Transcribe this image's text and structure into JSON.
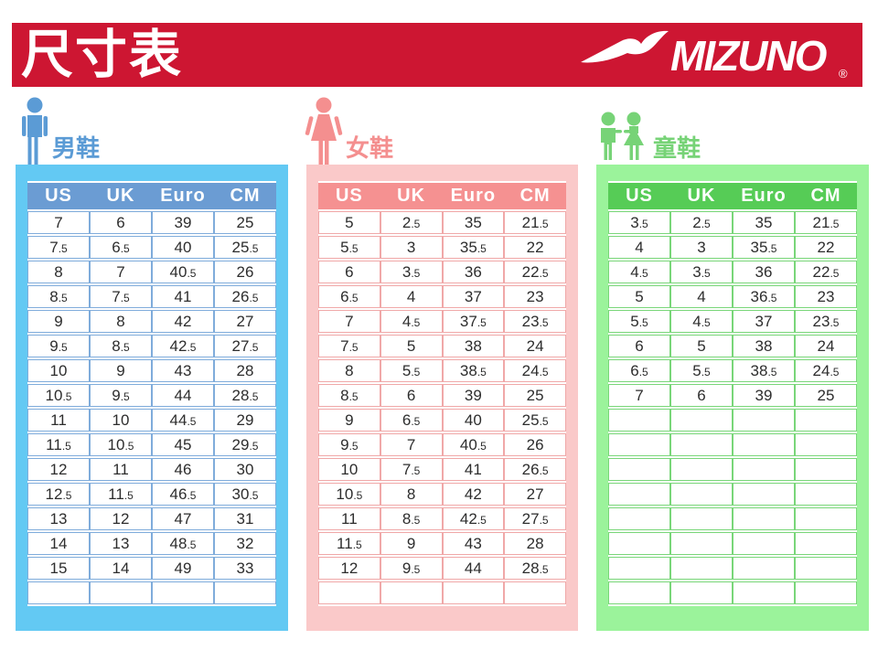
{
  "banner": {
    "title": "尺寸表",
    "brand": "MIZUNO",
    "registered_mark": "®",
    "background": "#CD1632"
  },
  "sections": [
    {
      "id": "men",
      "label": "男鞋",
      "icon": "man-icon",
      "colors": {
        "panel": "#63C9F3",
        "header": "#6B9CD3",
        "border": "#7FACDB",
        "accent": "#5B9BD5"
      },
      "columns": [
        "US",
        "UK",
        "Euro",
        "CM"
      ],
      "rows": [
        [
          "7",
          "6",
          "39",
          "25"
        ],
        [
          "7.5",
          "6.5",
          "40",
          "25.5"
        ],
        [
          "8",
          "7",
          "40.5",
          "26"
        ],
        [
          "8.5",
          "7.5",
          "41",
          "26.5"
        ],
        [
          "9",
          "8",
          "42",
          "27"
        ],
        [
          "9.5",
          "8.5",
          "42.5",
          "27.5"
        ],
        [
          "10",
          "9",
          "43",
          "28"
        ],
        [
          "10.5",
          "9.5",
          "44",
          "28.5"
        ],
        [
          "11",
          "10",
          "44.5",
          "29"
        ],
        [
          "11.5",
          "10.5",
          "45",
          "29.5"
        ],
        [
          "12",
          "11",
          "46",
          "30"
        ],
        [
          "12.5",
          "11.5",
          "46.5",
          "30.5"
        ],
        [
          "13",
          "12",
          "47",
          "31"
        ],
        [
          "14",
          "13",
          "48.5",
          "32"
        ],
        [
          "15",
          "14",
          "49",
          "33"
        ]
      ],
      "empty_row_count": 1
    },
    {
      "id": "women",
      "label": "女鞋",
      "icon": "woman-icon",
      "colors": {
        "panel": "#FAC9C9",
        "header": "#F59191",
        "border": "#F0A8A8",
        "accent": "#F48F8F"
      },
      "columns": [
        "US",
        "UK",
        "Euro",
        "CM"
      ],
      "rows": [
        [
          "5",
          "2.5",
          "35",
          "21.5"
        ],
        [
          "5.5",
          "3",
          "35.5",
          "22"
        ],
        [
          "6",
          "3.5",
          "36",
          "22.5"
        ],
        [
          "6.5",
          "4",
          "37",
          "23"
        ],
        [
          "7",
          "4.5",
          "37.5",
          "23.5"
        ],
        [
          "7.5",
          "5",
          "38",
          "24"
        ],
        [
          "8",
          "5.5",
          "38.5",
          "24.5"
        ],
        [
          "8.5",
          "6",
          "39",
          "25"
        ],
        [
          "9",
          "6.5",
          "40",
          "25.5"
        ],
        [
          "9.5",
          "7",
          "40.5",
          "26"
        ],
        [
          "10",
          "7.5",
          "41",
          "26.5"
        ],
        [
          "10.5",
          "8",
          "42",
          "27"
        ],
        [
          "11",
          "8.5",
          "42.5",
          "27.5"
        ],
        [
          "11.5",
          "9",
          "43",
          "28"
        ],
        [
          "12",
          "9.5",
          "44",
          "28.5"
        ]
      ],
      "empty_row_count": 1
    },
    {
      "id": "children",
      "label": "童鞋",
      "icon": "children-icon",
      "colors": {
        "panel": "#9BF39B",
        "header": "#56CC56",
        "border": "#79D679",
        "accent": "#77D377"
      },
      "columns": [
        "US",
        "UK",
        "Euro",
        "CM"
      ],
      "rows": [
        [
          "3.5",
          "2.5",
          "35",
          "21.5"
        ],
        [
          "4",
          "3",
          "35.5",
          "22"
        ],
        [
          "4.5",
          "3.5",
          "36",
          "22.5"
        ],
        [
          "5",
          "4",
          "36.5",
          "23"
        ],
        [
          "5.5",
          "4.5",
          "37",
          "23.5"
        ],
        [
          "6",
          "5",
          "38",
          "24"
        ],
        [
          "6.5",
          "5.5",
          "38.5",
          "24.5"
        ],
        [
          "7",
          "6",
          "39",
          "25"
        ]
      ],
      "empty_row_count": 8
    }
  ]
}
